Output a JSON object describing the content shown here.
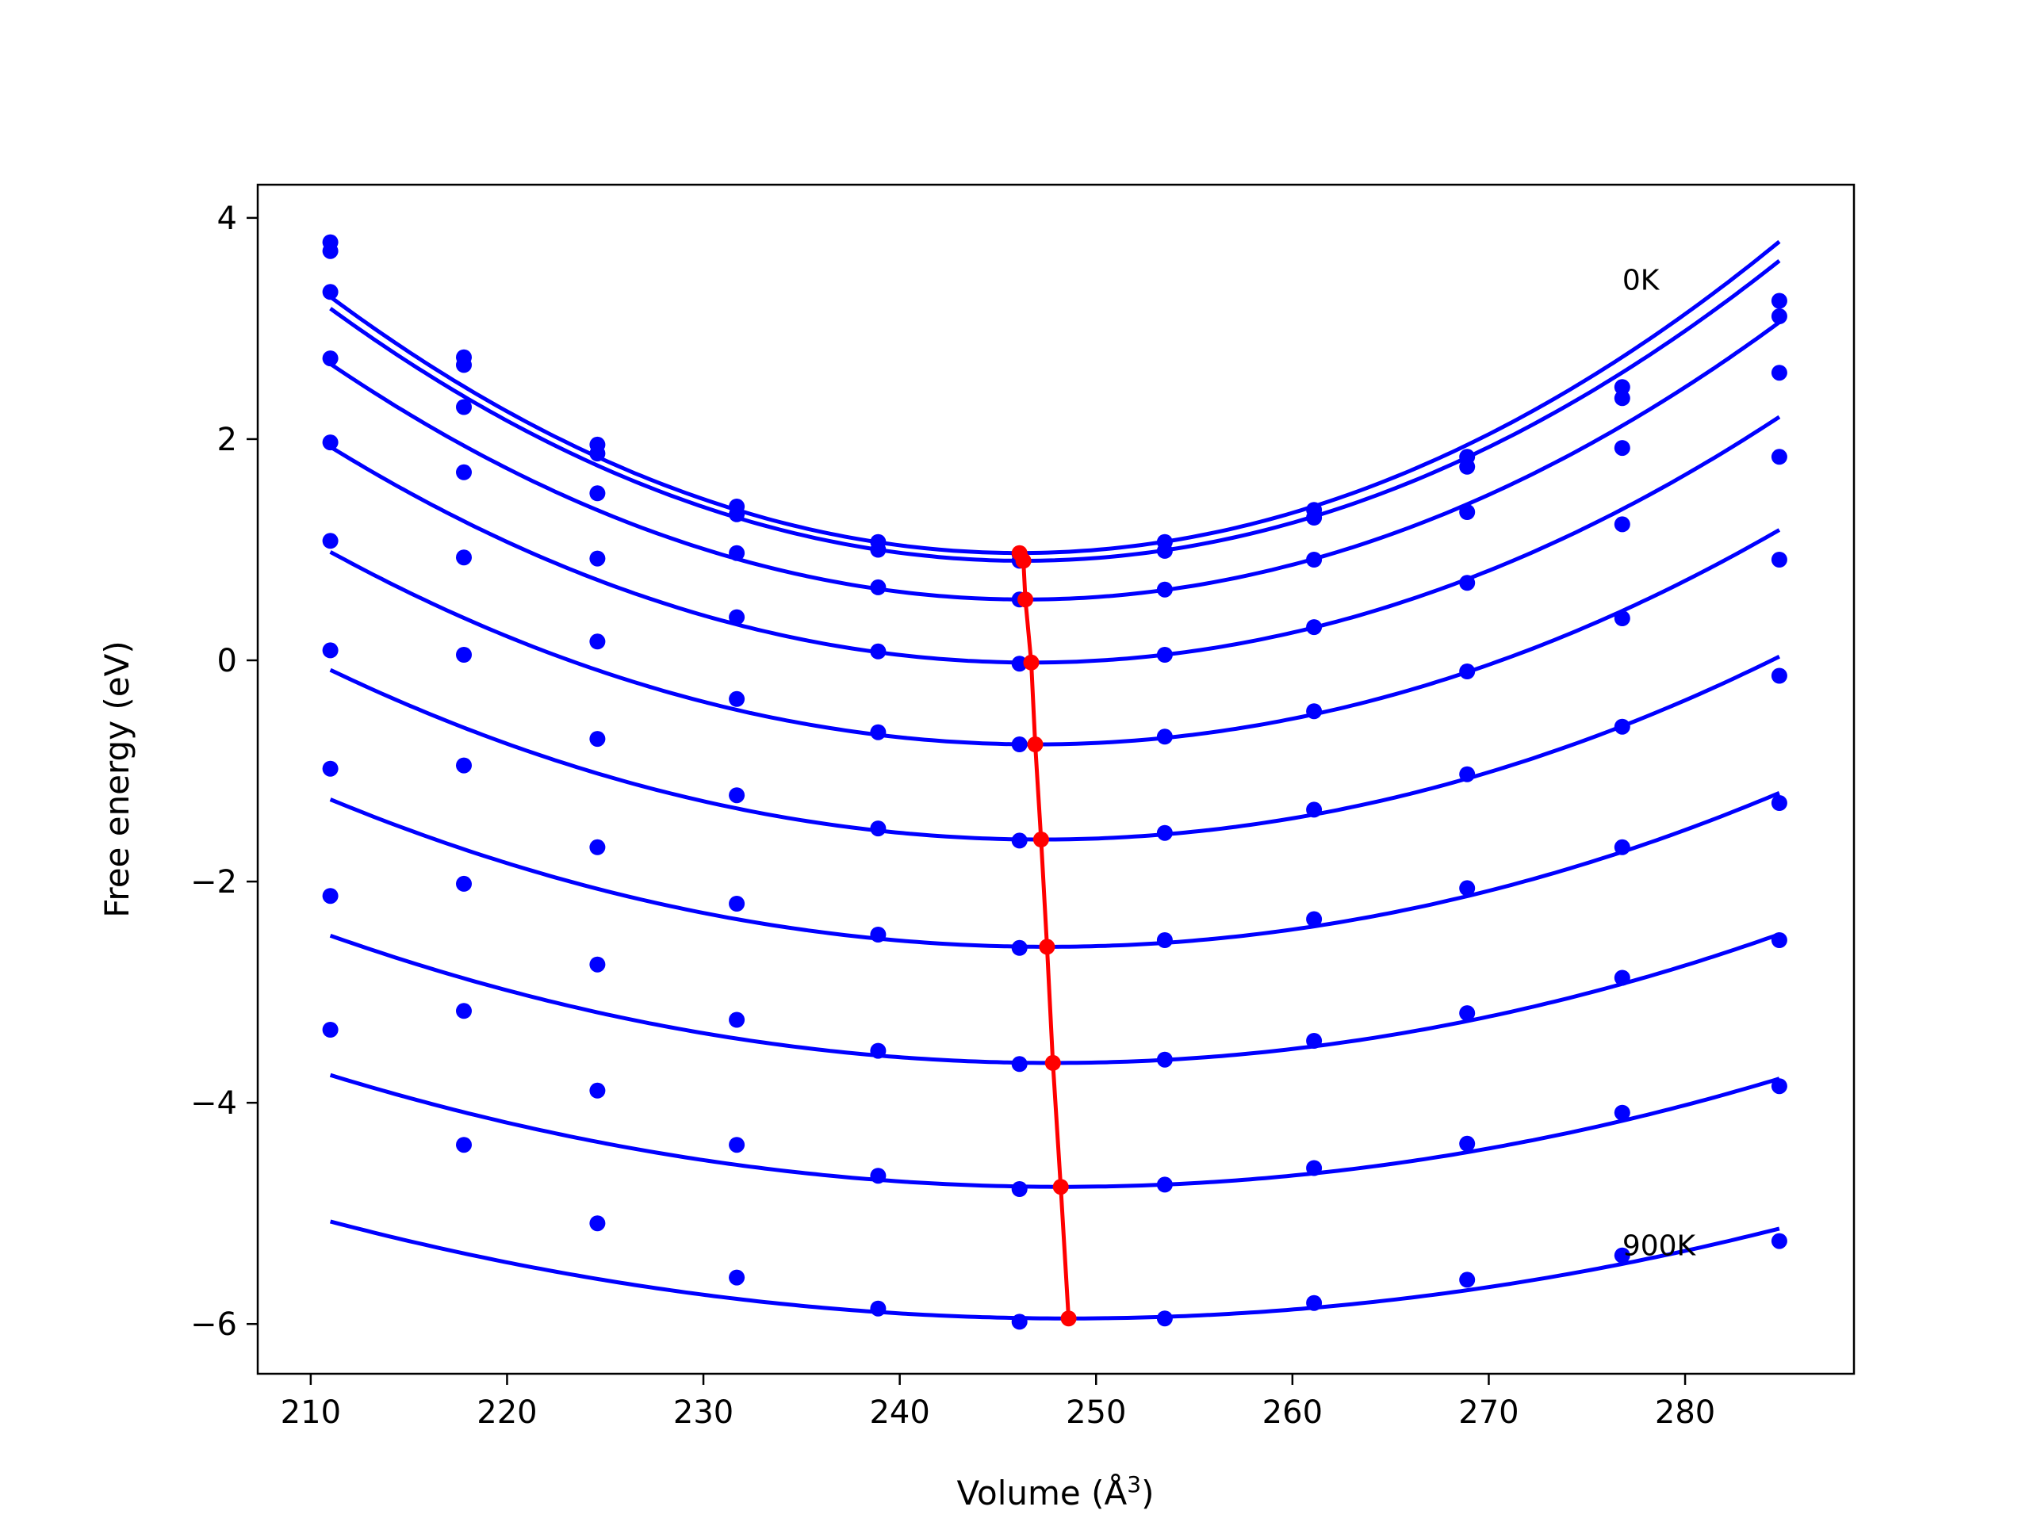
{
  "chart_data": {
    "type": "line",
    "xlabel": "Volume (Å",
    "xlabel_sup": "3",
    "xlabel_suffix": ")",
    "ylabel": "Free energy (eV)",
    "xlim": [
      207.3,
      288.6
    ],
    "ylim": [
      -6.45,
      4.3
    ],
    "x_ticks": [
      210,
      220,
      230,
      240,
      250,
      260,
      270,
      280
    ],
    "x_tick_labels": [
      "210",
      "220",
      "230",
      "240",
      "250",
      "260",
      "270",
      "280"
    ],
    "y_ticks": [
      4,
      2,
      0,
      -2,
      -4,
      -6
    ],
    "y_tick_labels": [
      "4",
      "2",
      "0",
      "−2",
      "−4",
      "−6"
    ],
    "grid": false,
    "curve_color": "#0000ff",
    "min_line_color": "#ff0000",
    "volumes": [
      211.0,
      217.8,
      224.6,
      231.7,
      238.9,
      246.1,
      253.5,
      261.1,
      268.9,
      276.8,
      284.8
    ],
    "annotations": [
      {
        "text": "0K",
        "x": 276.8,
        "y": 3.35
      },
      {
        "text": "900K",
        "x": 276.8,
        "y": -5.38
      }
    ],
    "series": [
      {
        "values": [
          3.78,
          2.74,
          1.95,
          1.39,
          1.07,
          0.96,
          1.07,
          1.36,
          1.84,
          2.47,
          3.25
        ],
        "fit": {
          "a": 0.00188,
          "v0": 246.1,
          "f0": 0.97
        }
      },
      {
        "values": [
          3.7,
          2.67,
          1.87,
          1.32,
          1.0,
          0.9,
          0.99,
          1.29,
          1.75,
          2.37,
          3.11
        ],
        "fit": {
          "a": 0.00183,
          "v0": 246.3,
          "f0": 0.9
        }
      },
      {
        "values": [
          3.33,
          2.29,
          1.51,
          0.97,
          0.66,
          0.55,
          0.64,
          0.91,
          1.34,
          1.92,
          2.6
        ],
        "fit": {
          "a": 0.0017,
          "v0": 246.4,
          "f0": 0.55
        }
      },
      {
        "values": [
          2.73,
          1.7,
          0.92,
          0.39,
          0.08,
          -0.03,
          0.05,
          0.3,
          0.7,
          1.23,
          1.84
        ],
        "fit": {
          "a": 0.00153,
          "v0": 246.7,
          "f0": -0.02
        }
      },
      {
        "values": [
          1.97,
          0.93,
          0.17,
          -0.35,
          -0.65,
          -0.76,
          -0.69,
          -0.46,
          -0.1,
          0.38,
          0.91
        ],
        "fit": {
          "a": 0.00135,
          "v0": 246.9,
          "f0": -0.76
        }
      },
      {
        "values": [
          1.08,
          0.05,
          -0.71,
          -1.22,
          -1.52,
          -1.63,
          -1.56,
          -1.35,
          -1.03,
          -0.6,
          -0.14
        ],
        "fit": {
          "a": 0.00117,
          "v0": 247.2,
          "f0": -1.62
        }
      },
      {
        "values": [
          0.09,
          -0.95,
          -1.69,
          -2.2,
          -2.48,
          -2.6,
          -2.53,
          -2.34,
          -2.06,
          -1.69,
          -1.29
        ],
        "fit": {
          "a": 0.001,
          "v0": 247.5,
          "f0": -2.59
        }
      },
      {
        "values": [
          -0.98,
          -2.02,
          -2.75,
          -3.25,
          -3.53,
          -3.65,
          -3.61,
          -3.44,
          -3.19,
          -2.87,
          -2.53
        ],
        "fit": {
          "a": 0.00085,
          "v0": 247.8,
          "f0": -3.64
        }
      },
      {
        "values": [
          -2.13,
          -3.17,
          -3.89,
          -4.38,
          -4.66,
          -4.78,
          -4.74,
          -4.59,
          -4.37,
          -4.09,
          -3.85
        ],
        "fit": {
          "a": 0.00073,
          "v0": 248.2,
          "f0": -4.76
        }
      },
      {
        "values": [
          -3.34,
          -4.38,
          -5.09,
          -5.58,
          -5.86,
          -5.98,
          -5.95,
          -5.81,
          -5.6,
          -5.38,
          -5.25
        ],
        "fit": {
          "a": 0.00062,
          "v0": 248.6,
          "f0": -5.95
        }
      }
    ]
  }
}
